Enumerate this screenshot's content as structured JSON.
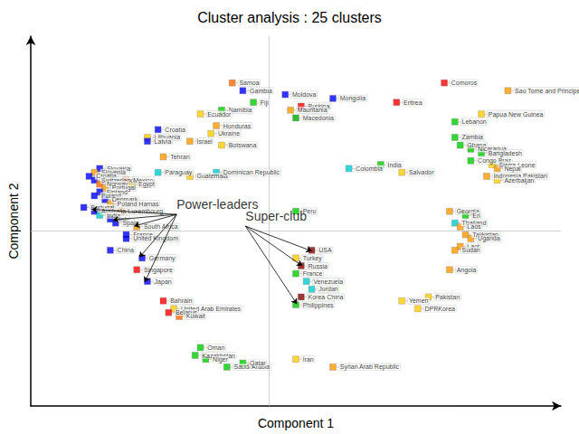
{
  "chart_data": {
    "type": "scatter",
    "title": "Cluster analysis : 25 clusters",
    "xlabel": "Component 1",
    "ylabel": "Component 2",
    "xlim": [
      -4.5,
      5.5
    ],
    "ylim": [
      -4.5,
      5.0
    ],
    "xticks": [],
    "yticks": [],
    "tick_labels": false,
    "grid": false,
    "marker": "square",
    "reference_lines": [
      {
        "axis": "x",
        "value": 0
      },
      {
        "axis": "y",
        "value": 0
      }
    ],
    "labels": [
      "Comoros",
      "Sao Tome and Principe",
      "Moldova",
      "Mongolia",
      "Burkina",
      "Mauritania",
      "Macedonia",
      "Eritrea",
      "Papua New Guinea",
      "Samoa",
      "Gambia",
      "Fiji",
      "Namibia",
      "Ecuador",
      "Honduras",
      "Ukraine",
      "Lebanon",
      "Croatia",
      "Lithuania",
      "Latvia",
      "Israel",
      "Botswana",
      "Zambia",
      "Ghana",
      "Nicaragua",
      "Bangladesh",
      "Tehran",
      "India",
      "Colombia",
      "Slovakia",
      "Slovenia",
      "Croatia",
      "Switzerland",
      "Norway",
      "Portugal",
      "Mexico",
      "Egypt",
      "Finland",
      "Poland",
      "Denmark",
      "Poland Hamas",
      "Paraguay",
      "Guatemala",
      "Dominican Republic",
      "Salvador",
      "Congo Braz",
      "Sierra Leone",
      "Nepal",
      "Indonesia Pakistan",
      "Azerbaijan",
      "Peru",
      "Portugal",
      "Australia",
      "India",
      "Luxembourg",
      "Italy",
      "Spain",
      "South Africa",
      "France",
      "United Kingdom",
      "China",
      "Germany",
      "Georgia",
      "Eri",
      "Thailand",
      "Laos",
      "Tajikistan",
      "Uganda",
      "Laot",
      "Sudan",
      "Singapore",
      "Japan",
      "Angola",
      "USA",
      "Turkey",
      "Russia",
      "France",
      "Venezuela",
      "Jordan",
      "Korea China",
      "Philippines",
      "Bahrain",
      "United Arab Emirates",
      "Belarus",
      "Kuwait",
      "Yemen",
      "Pakistan",
      "DPRKorea",
      "Oman",
      "Kazakhstan",
      "Niger",
      "Saudi Arabia",
      "Qatar",
      "Iran",
      "Syrian Arab Republic"
    ],
    "x": [
      3.3,
      4.5,
      0.3,
      1.2,
      0.6,
      0.4,
      0.5,
      2.4,
      4.0,
      -0.7,
      -0.5,
      -0.3,
      -0.9,
      -1.3,
      -1.0,
      -1.1,
      3.5,
      -2.1,
      -2.3,
      -2.3,
      -1.5,
      -0.9,
      3.5,
      3.6,
      3.8,
      4.0,
      -2.0,
      2.1,
      1.5,
      -3.2,
      -3.3,
      -3.4,
      -3.3,
      -3.2,
      -3.1,
      -2.7,
      -2.6,
      -3.2,
      -3.3,
      -3.1,
      -3.0,
      -2.1,
      -1.5,
      -1.0,
      2.5,
      3.8,
      4.2,
      4.3,
      4.1,
      4.3,
      0.5,
      -3.5,
      -3.3,
      -3.2,
      -2.8,
      -3.0,
      -2.9,
      -2.5,
      -2.7,
      -2.7,
      -3.0,
      -2.4,
      3.4,
      3.7,
      3.5,
      3.6,
      3.7,
      3.8,
      3.6,
      3.5,
      -2.5,
      -2.3,
      3.4,
      0.8,
      0.5,
      0.6,
      0.5,
      0.7,
      0.8,
      0.6,
      0.5,
      -2.0,
      -1.8,
      -1.9,
      -1.7,
      2.5,
      3.0,
      2.8,
      -1.3,
      -1.4,
      -1.2,
      -0.8,
      -0.5,
      0.5,
      1.2
    ],
    "values": [
      3.8,
      3.6,
      3.5,
      3.4,
      3.2,
      3.1,
      2.9,
      3.3,
      3.0,
      3.8,
      3.6,
      3.3,
      3.1,
      3.0,
      2.7,
      2.5,
      2.8,
      2.6,
      2.4,
      2.3,
      2.3,
      2.2,
      2.4,
      2.2,
      2.1,
      2.0,
      1.9,
      1.7,
      1.6,
      1.6,
      1.5,
      1.4,
      1.3,
      1.2,
      1.1,
      1.3,
      1.2,
      1.0,
      0.9,
      0.8,
      0.7,
      1.5,
      1.4,
      1.5,
      1.5,
      1.8,
      1.7,
      1.6,
      1.4,
      1.3,
      0.5,
      0.6,
      0.5,
      0.4,
      0.5,
      0.3,
      0.2,
      0.1,
      -0.1,
      -0.2,
      -0.5,
      -0.7,
      0.5,
      0.4,
      0.2,
      0.1,
      -0.1,
      -0.2,
      -0.4,
      -0.5,
      -1.0,
      -1.3,
      -1.0,
      -0.5,
      -0.7,
      -0.9,
      -1.1,
      -1.3,
      -1.5,
      -1.7,
      -1.9,
      -1.8,
      -2.0,
      -2.1,
      -2.2,
      -1.8,
      -1.7,
      -2.0,
      -3.0,
      -3.2,
      -3.3,
      -3.5,
      -3.4,
      -3.3,
      -3.5
    ],
    "colors": [
      "#ff0000",
      "#ff9900",
      "#0000ff",
      "#0000ff",
      "#ff0000",
      "#ff9900",
      "#00aa00",
      "#ff0000",
      "#ffcc00",
      "#ff6600",
      "#0000ff",
      "#00cc00",
      "#00cc00",
      "#ffcc00",
      "#ff9900",
      "#ffcc00",
      "#00cc00",
      "#0000ff",
      "#ffcc00",
      "#0000ff",
      "#ff9900",
      "#ffcc00",
      "#00cc00",
      "#00cc00",
      "#00cc00",
      "#00cc00",
      "#ff9900",
      "#00cc00",
      "#00cccc",
      "#0000ff",
      "#ff9900",
      "#0000ff",
      "#0000ff",
      "#ff6600",
      "#ff9900",
      "#ff6600",
      "#ffcc00",
      "#0000ff",
      "#0000ff",
      "#0000ff",
      "#ff9900",
      "#00cccc",
      "#ffcc00",
      "#00cccc",
      "#ffcc00",
      "#00cc00",
      "#ffcc00",
      "#ff9900",
      "#ff9900",
      "#ffcc00",
      "#00cc00",
      "#0000ff",
      "#0000ff",
      "#00cccc",
      "#ff9900",
      "#0000ff",
      "#0000ff",
      "#ff9900",
      "#0000ff",
      "#0000ff",
      "#0000ff",
      "#0000ff",
      "#ff9900",
      "#00cc00",
      "#00cccc",
      "#ff9900",
      "#ff9900",
      "#ff9900",
      "#ff9900",
      "#ff9900",
      "#ff0000",
      "#0000ff",
      "#ff9900",
      "#880000",
      "#ffcc00",
      "#880000",
      "#00cc00",
      "#00cccc",
      "#00cccc",
      "#880000",
      "#00cc00",
      "#ff0000",
      "#ffcc00",
      "#ff0000",
      "#ff6600",
      "#ffcc00",
      "#ffcc00",
      "#ffcc00",
      "#00cc00",
      "#00cc00",
      "#00cc00",
      "#00cc00",
      "#00cc00",
      "#ffcc00",
      "#ff9900"
    ],
    "annotations": [
      {
        "text": "Power-leaders",
        "x": -1.75,
        "y": 0.42,
        "arrows": [
          [
            -1.75,
            0.42,
            -3.35,
            0.55
          ],
          [
            -1.75,
            0.42,
            -2.95,
            0.28
          ],
          [
            -1.75,
            0.42,
            -2.55,
            0.12
          ],
          [
            -1.75,
            0.42,
            -2.45,
            -0.68
          ],
          [
            -1.75,
            0.42,
            -2.35,
            -1.32
          ]
        ]
      },
      {
        "text": "Super-club",
        "x": -0.45,
        "y": 0.12,
        "arrows": [
          [
            -0.45,
            0.12,
            0.8,
            -0.52
          ],
          [
            -0.45,
            0.12,
            0.62,
            -0.9
          ],
          [
            -0.45,
            0.12,
            0.52,
            -1.88
          ]
        ]
      }
    ]
  }
}
